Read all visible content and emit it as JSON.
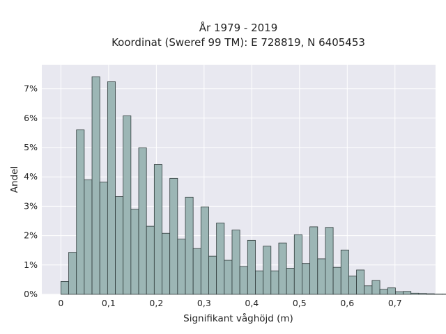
{
  "chart_data": {
    "type": "bar",
    "title_line1": "År 1979 - 2019",
    "title_line2": "Koordinat (Sweref 99 TM): E 728819, N 6405453",
    "xlabel": "Signifikant våghöjd (m)",
    "ylabel": "Andel",
    "bin_width": 0.0163,
    "bin_start": 0.0,
    "xlim": [
      -0.04,
      0.785
    ],
    "ylim": [
      0,
      0.0782
    ],
    "x_ticks": [
      0,
      0.1,
      0.2,
      0.3,
      0.4,
      0.5,
      0.6,
      0.7
    ],
    "x_tick_labels": [
      "0",
      "0,1",
      "0,2",
      "0,3",
      "0,4",
      "0,5",
      "0,6",
      "0,7"
    ],
    "y_ticks": [
      0,
      0.01,
      0.02,
      0.03,
      0.04,
      0.05,
      0.06,
      0.07
    ],
    "y_tick_labels": [
      "0%",
      "1%",
      "2%",
      "3%",
      "4%",
      "5%",
      "6%",
      "7%"
    ],
    "values": [
      0.0044,
      0.0143,
      0.056,
      0.039,
      0.0741,
      0.0382,
      0.0724,
      0.0333,
      0.0608,
      0.029,
      0.0499,
      0.0232,
      0.0442,
      0.0208,
      0.0395,
      0.0188,
      0.0331,
      0.0156,
      0.0298,
      0.013,
      0.0243,
      0.0116,
      0.0219,
      0.0095,
      0.0184,
      0.008,
      0.0164,
      0.008,
      0.0175,
      0.0089,
      0.0203,
      0.0105,
      0.023,
      0.0121,
      0.0228,
      0.0092,
      0.0151,
      0.0062,
      0.0083,
      0.0029,
      0.0047,
      0.0017,
      0.0022,
      0.0009,
      0.001,
      0.0004,
      0.0003,
      0.0002,
      0.0001,
      0.0001
    ],
    "colors": {
      "bar_fill": "#9cb6b5",
      "bar_edge": "#2f3b3b",
      "plot_bg": "#e8e8f0",
      "grid": "#ffffff"
    }
  }
}
